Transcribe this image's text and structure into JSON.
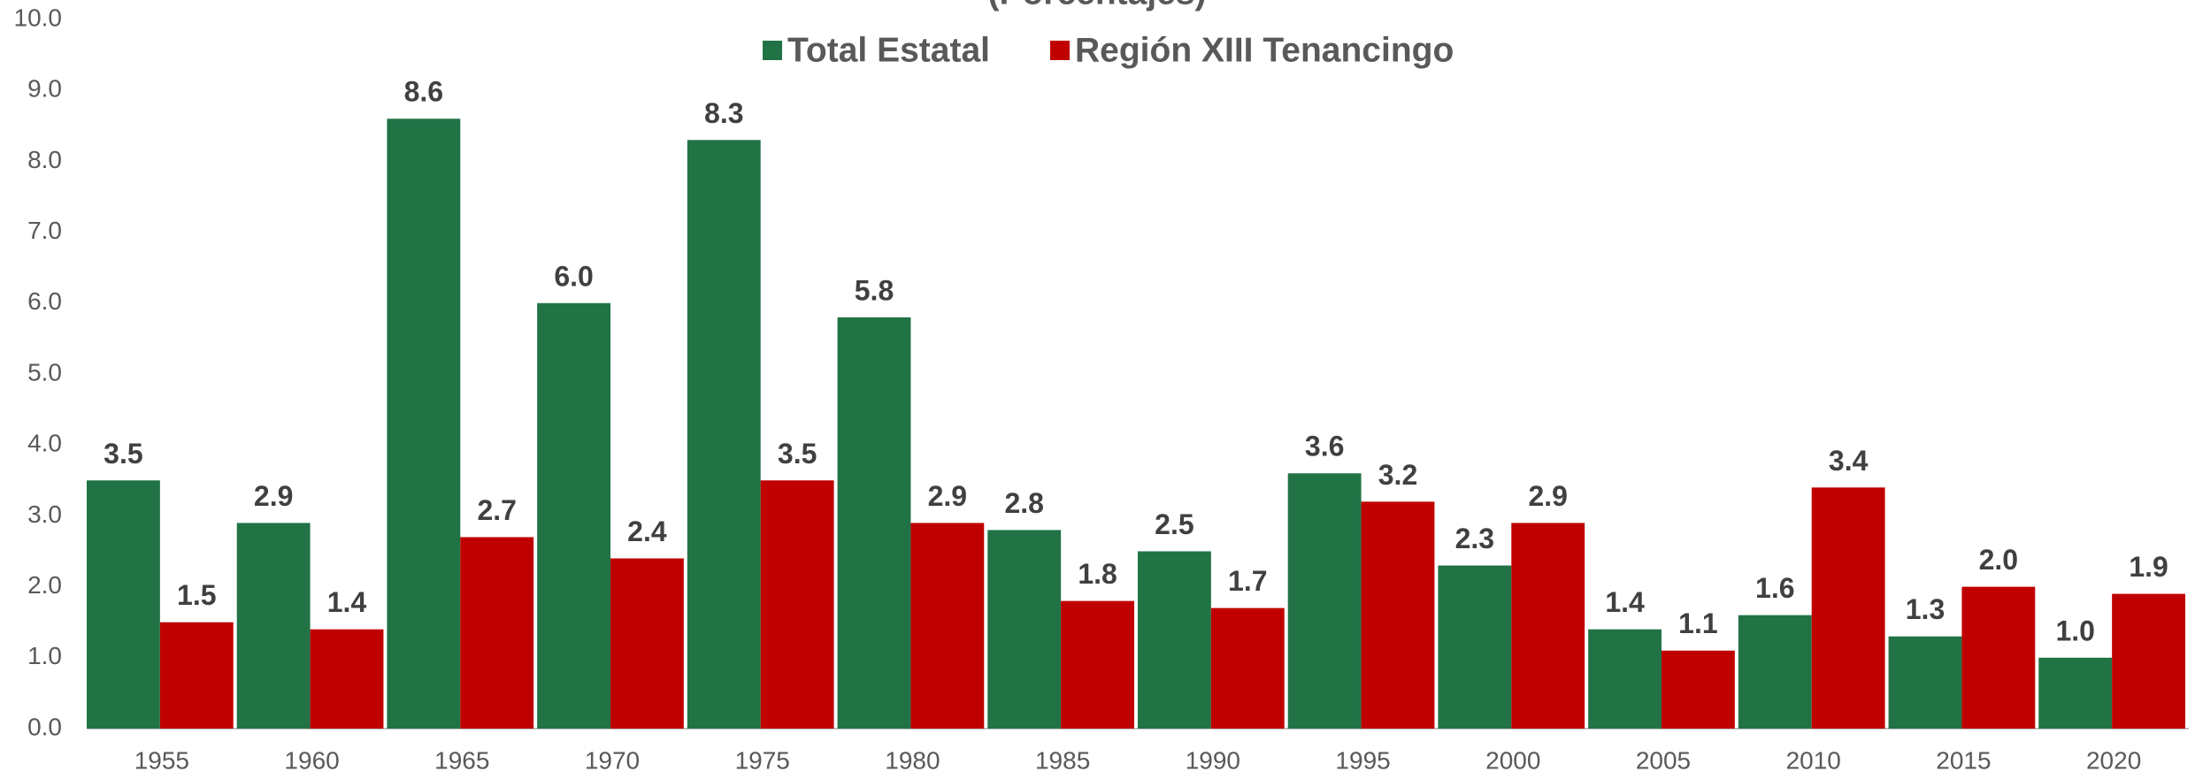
{
  "chart_data": {
    "type": "bar",
    "subtitle": "(Porcentajes)",
    "categories": [
      "1955",
      "1960",
      "1965",
      "1970",
      "1975",
      "1980",
      "1985",
      "1990",
      "1995",
      "2000",
      "2005",
      "2010",
      "2015",
      "2020"
    ],
    "series": [
      {
        "name": "Total Estatal",
        "color": "#217346",
        "values": [
          3.5,
          2.9,
          8.6,
          6.0,
          8.3,
          5.8,
          2.8,
          2.5,
          3.6,
          2.3,
          1.4,
          1.6,
          1.3,
          1.0
        ],
        "value_labels": [
          "3.5",
          "2.9",
          "8.6",
          "6.0",
          "8.3",
          "5.8",
          "2.8",
          "2.5",
          "3.6",
          "2.3",
          "1.4",
          "1.6",
          "1.3",
          "1.0"
        ]
      },
      {
        "name": "Región XIII Tenancingo",
        "color": "#c00000",
        "values": [
          1.5,
          1.4,
          2.7,
          2.4,
          3.5,
          2.9,
          1.8,
          1.7,
          3.2,
          2.9,
          1.1,
          3.4,
          2.0,
          1.9
        ],
        "value_labels": [
          "1.5",
          "1.4",
          "2.7",
          "2.4",
          "3.5",
          "2.9",
          "1.8",
          "1.7",
          "3.2",
          "2.9",
          "1.1",
          "3.4",
          "2.0",
          "1.9"
        ]
      }
    ],
    "ylim": [
      0,
      10
    ],
    "yticks": [
      {
        "value": 0,
        "label": "0.0"
      },
      {
        "value": 1,
        "label": "1.0"
      },
      {
        "value": 2,
        "label": "2.0"
      },
      {
        "value": 3,
        "label": "3.0"
      },
      {
        "value": 4,
        "label": "4.0"
      },
      {
        "value": 5,
        "label": "5.0"
      },
      {
        "value": 6,
        "label": "6.0"
      },
      {
        "value": 7,
        "label": "7.0"
      },
      {
        "value": 8,
        "label": "8.0"
      },
      {
        "value": 9,
        "label": "9.0"
      },
      {
        "value": 10,
        "label": "10.0"
      }
    ],
    "grid": false,
    "legend": "top"
  }
}
